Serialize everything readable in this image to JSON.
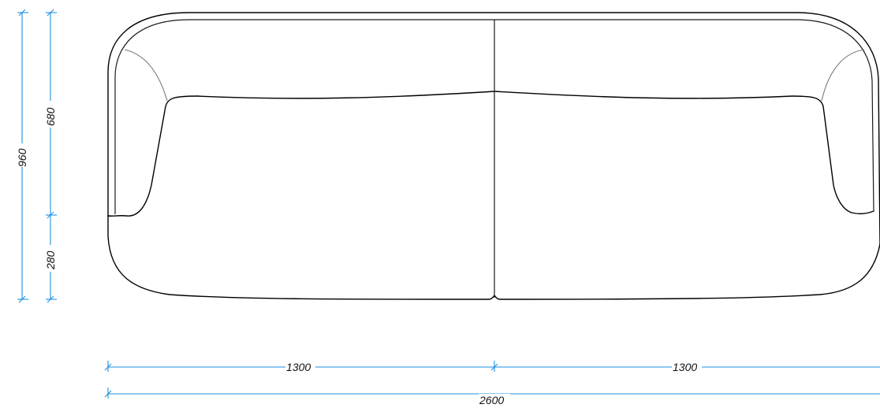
{
  "colors": {
    "outline": "#000000",
    "seam": "#7a7a7a",
    "dimension": "#1e8fe0",
    "background": "#ffffff"
  },
  "dimensions": {
    "total_height": "960",
    "back_height": "680",
    "seat_height": "280",
    "left_module_width": "1300",
    "right_module_width": "1300",
    "total_width": "2600"
  }
}
